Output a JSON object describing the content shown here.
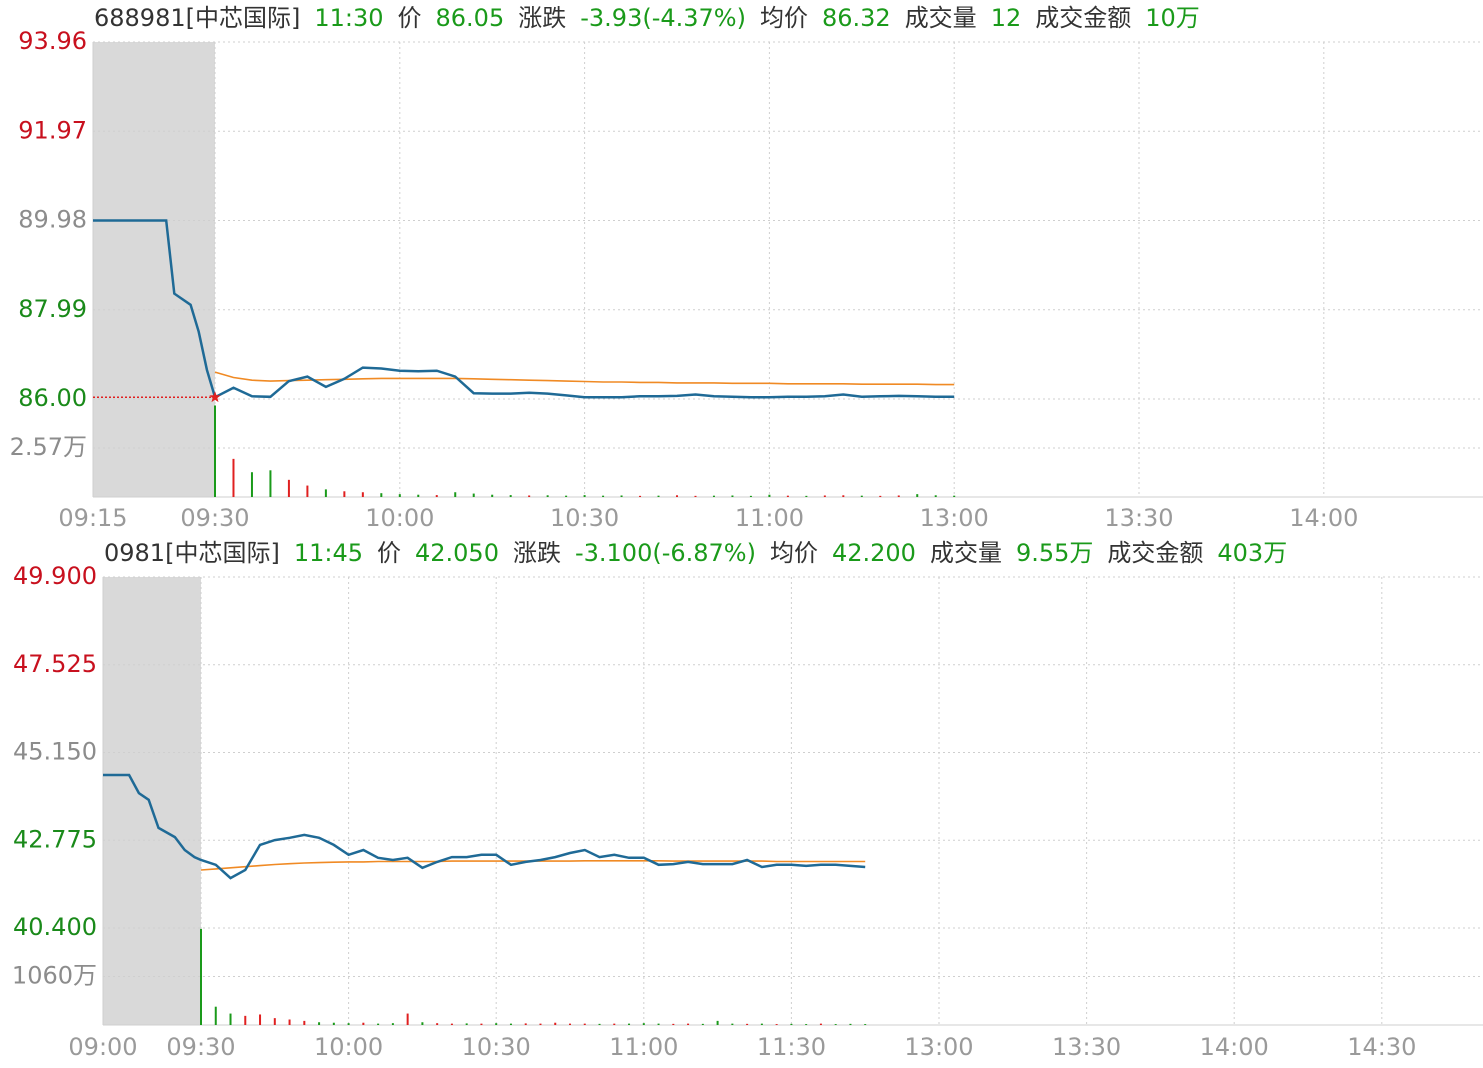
{
  "chart_data": [
    {
      "type": "line",
      "code_name": "688981[中芯国际]",
      "time": "11:30",
      "price_label": "价",
      "price": "86.05",
      "change_label": "涨跌",
      "change": "-3.93(-4.37%)",
      "avg_label": "均价",
      "avg": "86.32",
      "volume_label": "成交量",
      "volume": "12",
      "amount_label": "成交金额",
      "amount": "10万",
      "x": [
        "09:15",
        "09:24",
        "09:25",
        "09:27",
        "09:28",
        "09:29",
        "09:30",
        "09:33",
        "09:36",
        "09:39",
        "09:42",
        "09:45",
        "09:48",
        "09:51",
        "09:54",
        "09:57",
        "10:00",
        "10:03",
        "10:06",
        "10:09",
        "10:12",
        "10:15",
        "10:18",
        "10:21",
        "10:24",
        "10:27",
        "10:30",
        "10:33",
        "10:36",
        "10:39",
        "10:42",
        "10:45",
        "10:48",
        "10:51",
        "10:54",
        "10:57",
        "11:00",
        "11:03",
        "11:06",
        "11:09",
        "11:12",
        "11:15",
        "11:18",
        "11:21",
        "11:24",
        "11:27",
        "11:30"
      ],
      "values": [
        89.98,
        89.98,
        88.35,
        88.1,
        87.5,
        86.65,
        86.04,
        86.25,
        86.06,
        86.05,
        86.4,
        86.5,
        86.27,
        86.45,
        86.7,
        86.68,
        86.63,
        86.62,
        86.63,
        86.5,
        86.13,
        86.12,
        86.12,
        86.14,
        86.12,
        86.08,
        86.04,
        86.04,
        86.04,
        86.06,
        86.06,
        86.07,
        86.1,
        86.06,
        86.05,
        86.04,
        86.04,
        86.05,
        86.05,
        86.06,
        86.1,
        86.05,
        86.06,
        86.07,
        86.06,
        86.05,
        86.05
      ],
      "avg_values": [
        null,
        null,
        null,
        null,
        null,
        null,
        86.6,
        86.48,
        86.42,
        86.4,
        86.41,
        86.42,
        86.43,
        86.44,
        86.45,
        86.46,
        86.46,
        86.46,
        86.46,
        86.46,
        86.45,
        86.44,
        86.43,
        86.42,
        86.41,
        86.4,
        86.39,
        86.38,
        86.38,
        86.37,
        86.37,
        86.36,
        86.36,
        86.36,
        86.35,
        86.35,
        86.35,
        86.34,
        86.34,
        86.34,
        86.34,
        86.33,
        86.33,
        86.33,
        86.33,
        86.32,
        86.32
      ],
      "volumes": [
        null,
        null,
        null,
        null,
        null,
        null,
        48000,
        20000,
        13000,
        14000,
        9000,
        6000,
        4000,
        3000,
        2500,
        2000,
        1500,
        1200,
        1000,
        2500,
        1800,
        1200,
        1000,
        800,
        900,
        700,
        1000,
        700,
        800,
        600,
        700,
        900,
        600,
        700,
        800,
        600,
        1200,
        700,
        600,
        800,
        900,
        700,
        600,
        800,
        1500,
        900,
        700
      ],
      "color": "#1f6a96",
      "avg_color": "#f08a24",
      "up_color": "#e02020",
      "down_color": "#1a9a1a",
      "ylim": [
        86.0,
        93.96
      ],
      "yticks": [
        93.96,
        91.97,
        89.98,
        87.99,
        {
          "value": 86.0,
          "label": "86.00"
        }
      ],
      "ytick_colors": [
        "#c8101e",
        "#c8101e",
        "#8c8c8c",
        "#1a8a1a",
        "#1a8a1a"
      ],
      "volume_lim": [
        0,
        51400
      ],
      "volume_ticks": [
        {
          "value": 25700,
          "label": "2.57万"
        }
      ],
      "xticks": [
        "09:15",
        "09:30",
        "10:00",
        "10:30",
        "11:00",
        "13:00",
        "13:30",
        "14:00"
      ],
      "open_marker": true
    },
    {
      "type": "line",
      "code_name": "0981[中芯国际]",
      "time": "11:45",
      "price_label": "价",
      "price": "42.050",
      "change_label": "涨跌",
      "change": "-3.100(-6.87%)",
      "avg_label": "均价",
      "avg": "42.200",
      "volume_label": "成交量",
      "volume": "9.55万",
      "amount_label": "成交金额",
      "amount": "403万",
      "x": [
        "09:00",
        "09:08",
        "09:11",
        "09:14",
        "09:17",
        "09:22",
        "09:25",
        "09:28",
        "09:30",
        "09:33",
        "09:36",
        "09:39",
        "09:42",
        "09:45",
        "09:48",
        "09:51",
        "09:54",
        "09:57",
        "10:00",
        "10:03",
        "10:06",
        "10:09",
        "10:12",
        "10:15",
        "10:18",
        "10:21",
        "10:24",
        "10:27",
        "10:30",
        "10:33",
        "10:36",
        "10:39",
        "10:42",
        "10:45",
        "10:48",
        "10:51",
        "10:54",
        "10:57",
        "11:00",
        "11:03",
        "11:06",
        "11:09",
        "11:12",
        "11:15",
        "11:18",
        "11:21",
        "11:24",
        "11:27",
        "11:30",
        "11:33",
        "11:36",
        "11:39",
        "11:42",
        "11:45"
      ],
      "values": [
        44.54,
        44.54,
        44.05,
        43.87,
        43.11,
        42.86,
        42.51,
        42.32,
        42.24,
        42.11,
        41.75,
        41.97,
        42.65,
        42.78,
        42.84,
        42.92,
        42.84,
        42.65,
        42.38,
        42.51,
        42.3,
        42.24,
        42.3,
        42.03,
        42.19,
        42.32,
        42.32,
        42.38,
        42.38,
        42.11,
        42.19,
        42.24,
        42.32,
        42.43,
        42.51,
        42.32,
        42.38,
        42.3,
        42.3,
        42.11,
        42.13,
        42.19,
        42.13,
        42.13,
        42.13,
        42.24,
        42.05,
        42.11,
        42.11,
        42.08,
        42.11,
        42.11,
        42.08,
        42.05
      ],
      "avg_values": [
        null,
        null,
        null,
        null,
        null,
        null,
        null,
        null,
        41.97,
        42.0,
        42.03,
        42.06,
        42.09,
        42.12,
        42.14,
        42.16,
        42.17,
        42.18,
        42.19,
        42.19,
        42.2,
        42.2,
        42.2,
        42.2,
        42.2,
        42.21,
        42.21,
        42.21,
        42.21,
        42.21,
        42.21,
        42.21,
        42.21,
        42.21,
        42.22,
        42.22,
        42.22,
        42.22,
        42.22,
        42.22,
        42.21,
        42.21,
        42.21,
        42.21,
        42.21,
        42.21,
        42.21,
        42.2,
        42.2,
        42.2,
        42.2,
        42.2,
        42.2,
        42.2
      ],
      "volumes": [
        null,
        null,
        null,
        null,
        null,
        null,
        null,
        null,
        21000000,
        4000000,
        2500000,
        2000000,
        2300000,
        1500000,
        1200000,
        900000,
        600000,
        500000,
        400000,
        500000,
        300000,
        400000,
        2500000,
        600000,
        400000,
        300000,
        350000,
        300000,
        400000,
        300000,
        350000,
        300000,
        500000,
        300000,
        300000,
        250000,
        300000,
        300000,
        400000,
        300000,
        250000,
        300000,
        250000,
        900000,
        300000,
        250000,
        300000,
        200000,
        250000,
        200000,
        300000,
        200000,
        250000,
        200000
      ],
      "color": "#1f6a96",
      "avg_color": "#f08a24",
      "up_color": "#e02020",
      "down_color": "#1a9a1a",
      "ylim": [
        {
          "value": 40.4,
          "label": "40.400"
        },
        {
          "value": 49.9,
          "label": "49.900"
        }
      ],
      "yticks": [
        {
          "value": 49.9,
          "label": "49.900"
        },
        {
          "value": 47.525,
          "label": "47.525"
        },
        {
          "value": 45.15,
          "label": "45.150"
        },
        {
          "value": 42.775,
          "label": "42.775"
        },
        {
          "value": 40.4,
          "label": "40.400"
        }
      ],
      "ytick_colors": [
        "#c8101e",
        "#c8101e",
        "#8c8c8c",
        "#1a8a1a",
        "#1a8a1a"
      ],
      "volume_lim": [
        0,
        21200000
      ],
      "volume_ticks": [
        {
          "value": 10600000,
          "label": "1060万"
        }
      ],
      "xticks": [
        "09:00",
        "09:30",
        "10:00",
        "10:30",
        "11:00",
        "11:30",
        "13:00",
        "13:30",
        "14:00",
        "14:30"
      ],
      "open_marker": false
    }
  ]
}
